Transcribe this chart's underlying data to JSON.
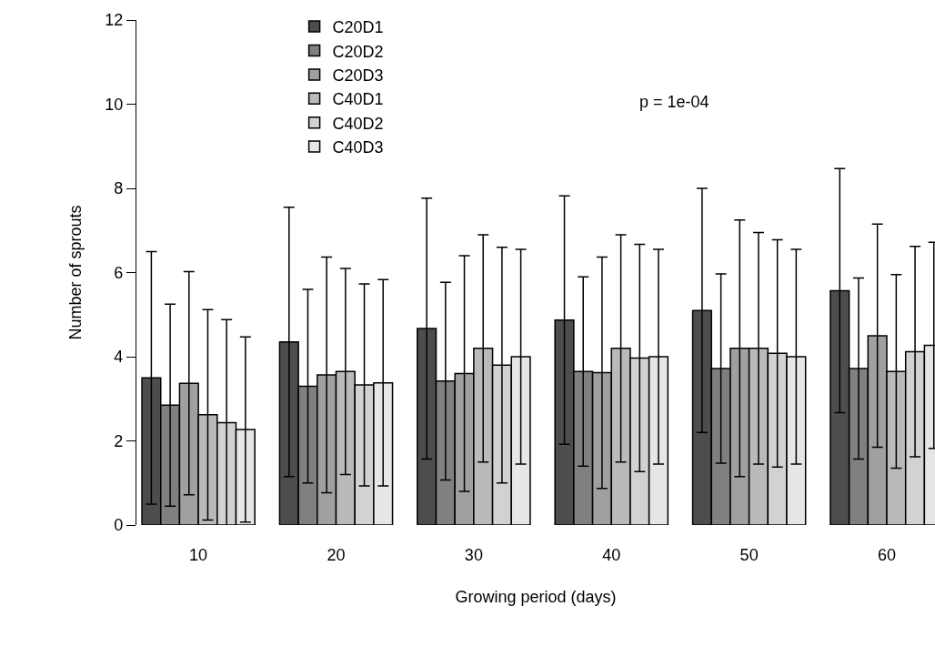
{
  "chart_data": {
    "type": "bar",
    "xlabel": "Growing period (days)",
    "ylabel": "Number of sprouts",
    "categories": [
      "10",
      "20",
      "30",
      "40",
      "50",
      "60"
    ],
    "series": [
      {
        "name": "C20D1",
        "color": "#4d4d4d",
        "values": [
          3.5,
          4.35,
          4.67,
          4.87,
          5.1,
          5.57
        ],
        "errors": [
          3.0,
          3.2,
          3.1,
          2.95,
          2.9,
          2.9
        ]
      },
      {
        "name": "C20D2",
        "color": "#808080",
        "values": [
          2.85,
          3.3,
          3.42,
          3.65,
          3.72,
          3.72
        ],
        "errors": [
          2.4,
          2.3,
          2.35,
          2.25,
          2.25,
          2.15
        ]
      },
      {
        "name": "C20D3",
        "color": "#a0a0a0",
        "values": [
          3.37,
          3.57,
          3.6,
          3.62,
          4.2,
          4.5
        ],
        "errors": [
          2.65,
          2.8,
          2.8,
          2.75,
          3.05,
          2.65
        ]
      },
      {
        "name": "C40D1",
        "color": "#bababa",
        "values": [
          2.62,
          3.65,
          4.2,
          4.2,
          4.2,
          3.65
        ],
        "errors": [
          2.5,
          2.45,
          2.7,
          2.7,
          2.75,
          2.3
        ]
      },
      {
        "name": "C40D2",
        "color": "#d2d2d2",
        "values": [
          2.43,
          3.33,
          3.8,
          3.97,
          4.08,
          4.12
        ],
        "errors": [
          2.45,
          2.4,
          2.8,
          2.7,
          2.7,
          2.5
        ]
      },
      {
        "name": "C40D3",
        "color": "#e6e6e6",
        "values": [
          2.27,
          3.38,
          4.0,
          4.0,
          4.0,
          4.27
        ],
        "errors": [
          2.2,
          2.45,
          2.55,
          2.55,
          2.55,
          2.45
        ]
      }
    ],
    "ylim": [
      0,
      12
    ],
    "yticks": [
      0,
      2,
      4,
      6,
      8,
      10,
      12
    ],
    "annotations": [
      "p = 1e-04"
    ],
    "legend": "top left",
    "grid": false
  }
}
